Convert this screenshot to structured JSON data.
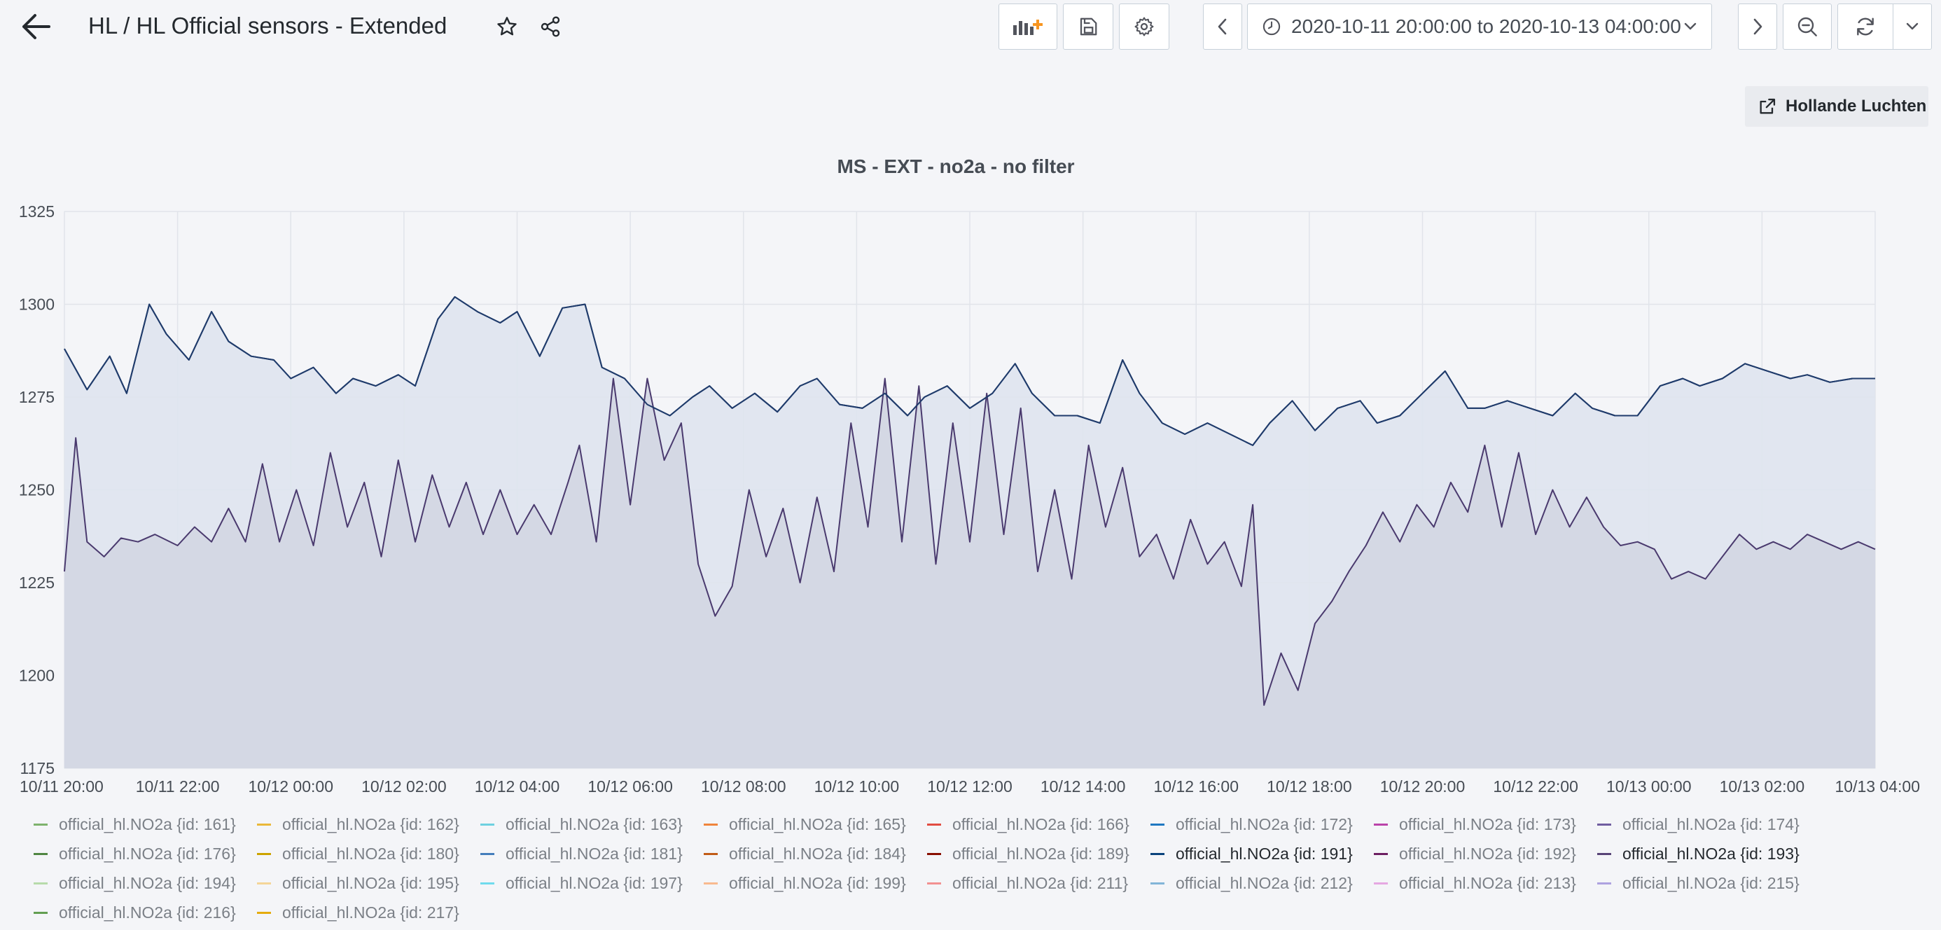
{
  "header": {
    "title": "HL / HL Official sensors - Extended",
    "time_range": "2020-10-11 20:00:00 to 2020-10-13 04:00:00"
  },
  "icons": {
    "back": "arrow-left-icon",
    "star": "star-icon",
    "share": "share-icon",
    "add_panel": "add-panel-icon",
    "save": "save-icon",
    "settings": "gear-icon",
    "prev": "chevron-left-icon",
    "clock": "clock-icon",
    "next": "chevron-right-icon",
    "zoom_out": "zoom-out-icon",
    "refresh": "refresh-icon",
    "external_link": "external-link-icon"
  },
  "links": {
    "external_link_label": "Hollande Luchten"
  },
  "panel": {
    "title": "MS - EXT - no2a - no filter"
  },
  "chart_data": {
    "type": "area",
    "title": "MS - EXT - no2a - no filter",
    "ylim": [
      1175,
      1325
    ],
    "y_ticks": [
      "1325",
      "1300",
      "1275",
      "1250",
      "1225",
      "1200",
      "1175"
    ],
    "x_ticks": [
      "10/11 20:00",
      "10/11 22:00",
      "10/12 00:00",
      "10/12 02:00",
      "10/12 04:00",
      "10/12 06:00",
      "10/12 08:00",
      "10/12 10:00",
      "10/12 12:00",
      "10/12 14:00",
      "10/12 16:00",
      "10/12 18:00",
      "10/12 20:00",
      "10/12 22:00",
      "10/13 00:00",
      "10/13 02:00",
      "10/13 04:00"
    ],
    "x_range_hours": [
      0,
      32
    ],
    "grid": true,
    "legend_position": "bottom",
    "series": [
      {
        "name": "official_hl.NO2a {id: 191}",
        "color": "#1f3b6b",
        "fill": "#dfe4ee",
        "points": [
          [
            0,
            1288
          ],
          [
            0.4,
            1277
          ],
          [
            0.8,
            1286
          ],
          [
            1.1,
            1276
          ],
          [
            1.5,
            1300
          ],
          [
            1.8,
            1292
          ],
          [
            2.2,
            1285
          ],
          [
            2.6,
            1298
          ],
          [
            2.9,
            1290
          ],
          [
            3.3,
            1286
          ],
          [
            3.7,
            1285
          ],
          [
            4.0,
            1280
          ],
          [
            4.4,
            1283
          ],
          [
            4.8,
            1276
          ],
          [
            5.1,
            1280
          ],
          [
            5.5,
            1278
          ],
          [
            5.9,
            1281
          ],
          [
            6.2,
            1278
          ],
          [
            6.6,
            1296
          ],
          [
            6.9,
            1302
          ],
          [
            7.3,
            1298
          ],
          [
            7.7,
            1295
          ],
          [
            8.0,
            1298
          ],
          [
            8.4,
            1286
          ],
          [
            8.8,
            1299
          ],
          [
            9.2,
            1300
          ],
          [
            9.5,
            1283
          ],
          [
            9.9,
            1280
          ],
          [
            10.3,
            1273
          ],
          [
            10.7,
            1270
          ],
          [
            11.1,
            1275
          ],
          [
            11.4,
            1278
          ],
          [
            11.8,
            1272
          ],
          [
            12.2,
            1276
          ],
          [
            12.6,
            1271
          ],
          [
            13.0,
            1278
          ],
          [
            13.3,
            1280
          ],
          [
            13.7,
            1273
          ],
          [
            14.1,
            1272
          ],
          [
            14.5,
            1276
          ],
          [
            14.9,
            1270
          ],
          [
            15.2,
            1275
          ],
          [
            15.6,
            1278
          ],
          [
            16.0,
            1272
          ],
          [
            16.4,
            1276
          ],
          [
            16.8,
            1284
          ],
          [
            17.1,
            1276
          ],
          [
            17.5,
            1270
          ],
          [
            17.9,
            1270
          ],
          [
            18.3,
            1268
          ],
          [
            18.7,
            1285
          ],
          [
            19.0,
            1276
          ],
          [
            19.4,
            1268
          ],
          [
            19.8,
            1265
          ],
          [
            20.2,
            1268
          ],
          [
            20.6,
            1265
          ],
          [
            21.0,
            1262
          ],
          [
            21.3,
            1268
          ],
          [
            21.7,
            1274
          ],
          [
            22.1,
            1266
          ],
          [
            22.5,
            1272
          ],
          [
            22.9,
            1274
          ],
          [
            23.2,
            1268
          ],
          [
            23.6,
            1270
          ],
          [
            24.0,
            1276
          ],
          [
            24.4,
            1282
          ],
          [
            24.8,
            1272
          ],
          [
            25.1,
            1272
          ],
          [
            25.5,
            1274
          ],
          [
            25.9,
            1272
          ],
          [
            26.3,
            1270
          ],
          [
            26.7,
            1276
          ],
          [
            27.0,
            1272
          ],
          [
            27.4,
            1270
          ],
          [
            27.8,
            1270
          ],
          [
            28.2,
            1278
          ],
          [
            28.6,
            1280
          ],
          [
            28.9,
            1278
          ],
          [
            29.3,
            1280
          ],
          [
            29.7,
            1284
          ],
          [
            30.1,
            1282
          ],
          [
            30.5,
            1280
          ],
          [
            30.8,
            1281
          ],
          [
            31.2,
            1279
          ],
          [
            31.6,
            1280
          ],
          [
            32.0,
            1280
          ]
        ]
      },
      {
        "name": "official_hl.NO2a {id: 193}",
        "color": "#4a3a6e",
        "fill": "#d3d6e2",
        "points": [
          [
            0,
            1228
          ],
          [
            0.2,
            1264
          ],
          [
            0.4,
            1236
          ],
          [
            0.7,
            1232
          ],
          [
            1.0,
            1237
          ],
          [
            1.3,
            1236
          ],
          [
            1.6,
            1238
          ],
          [
            2.0,
            1235
          ],
          [
            2.3,
            1240
          ],
          [
            2.6,
            1236
          ],
          [
            2.9,
            1245
          ],
          [
            3.2,
            1236
          ],
          [
            3.5,
            1257
          ],
          [
            3.8,
            1236
          ],
          [
            4.1,
            1250
          ],
          [
            4.4,
            1235
          ],
          [
            4.7,
            1260
          ],
          [
            5.0,
            1240
          ],
          [
            5.3,
            1252
          ],
          [
            5.6,
            1232
          ],
          [
            5.9,
            1258
          ],
          [
            6.2,
            1236
          ],
          [
            6.5,
            1254
          ],
          [
            6.8,
            1240
          ],
          [
            7.1,
            1252
          ],
          [
            7.4,
            1238
          ],
          [
            7.7,
            1250
          ],
          [
            8.0,
            1238
          ],
          [
            8.3,
            1246
          ],
          [
            8.6,
            1238
          ],
          [
            8.9,
            1252
          ],
          [
            9.1,
            1262
          ],
          [
            9.4,
            1236
          ],
          [
            9.7,
            1280
          ],
          [
            10.0,
            1246
          ],
          [
            10.3,
            1280
          ],
          [
            10.6,
            1258
          ],
          [
            10.9,
            1268
          ],
          [
            11.2,
            1230
          ],
          [
            11.5,
            1216
          ],
          [
            11.8,
            1224
          ],
          [
            12.1,
            1250
          ],
          [
            12.4,
            1232
          ],
          [
            12.7,
            1245
          ],
          [
            13.0,
            1225
          ],
          [
            13.3,
            1248
          ],
          [
            13.6,
            1228
          ],
          [
            13.9,
            1268
          ],
          [
            14.2,
            1240
          ],
          [
            14.5,
            1280
          ],
          [
            14.8,
            1236
          ],
          [
            15.1,
            1278
          ],
          [
            15.4,
            1230
          ],
          [
            15.7,
            1268
          ],
          [
            16.0,
            1236
          ],
          [
            16.3,
            1276
          ],
          [
            16.6,
            1238
          ],
          [
            16.9,
            1272
          ],
          [
            17.2,
            1228
          ],
          [
            17.5,
            1250
          ],
          [
            17.8,
            1226
          ],
          [
            18.1,
            1262
          ],
          [
            18.4,
            1240
          ],
          [
            18.7,
            1256
          ],
          [
            19.0,
            1232
          ],
          [
            19.3,
            1238
          ],
          [
            19.6,
            1226
          ],
          [
            19.9,
            1242
          ],
          [
            20.2,
            1230
          ],
          [
            20.5,
            1236
          ],
          [
            20.8,
            1224
          ],
          [
            21.0,
            1246
          ],
          [
            21.2,
            1192
          ],
          [
            21.5,
            1206
          ],
          [
            21.8,
            1196
          ],
          [
            22.1,
            1214
          ],
          [
            22.4,
            1220
          ],
          [
            22.7,
            1228
          ],
          [
            23.0,
            1235
          ],
          [
            23.3,
            1244
          ],
          [
            23.6,
            1236
          ],
          [
            23.9,
            1246
          ],
          [
            24.2,
            1240
          ],
          [
            24.5,
            1252
          ],
          [
            24.8,
            1244
          ],
          [
            25.1,
            1262
          ],
          [
            25.4,
            1240
          ],
          [
            25.7,
            1260
          ],
          [
            26.0,
            1238
          ],
          [
            26.3,
            1250
          ],
          [
            26.6,
            1240
          ],
          [
            26.9,
            1248
          ],
          [
            27.2,
            1240
          ],
          [
            27.5,
            1235
          ],
          [
            27.8,
            1236
          ],
          [
            28.1,
            1234
          ],
          [
            28.4,
            1226
          ],
          [
            28.7,
            1228
          ],
          [
            29.0,
            1226
          ],
          [
            29.3,
            1232
          ],
          [
            29.6,
            1238
          ],
          [
            29.9,
            1234
          ],
          [
            30.2,
            1236
          ],
          [
            30.5,
            1234
          ],
          [
            30.8,
            1238
          ],
          [
            31.1,
            1236
          ],
          [
            31.4,
            1234
          ],
          [
            31.7,
            1236
          ],
          [
            32.0,
            1234
          ]
        ]
      }
    ],
    "legend": [
      [
        {
          "name": "official_hl.NO2a {id: 161}",
          "color": "#7eb26d"
        },
        {
          "name": "official_hl.NO2a {id: 162}",
          "color": "#eab839"
        },
        {
          "name": "official_hl.NO2a {id: 163}",
          "color": "#6ed0e0"
        },
        {
          "name": "official_hl.NO2a {id: 165}",
          "color": "#ef843c"
        },
        {
          "name": "official_hl.NO2a {id: 166}",
          "color": "#e24d42"
        },
        {
          "name": "official_hl.NO2a {id: 172}",
          "color": "#1f78c1"
        },
        {
          "name": "official_hl.NO2a {id: 173}",
          "color": "#ba43a9"
        },
        {
          "name": "official_hl.NO2a {id: 174}",
          "color": "#705da0"
        }
      ],
      [
        {
          "name": "official_hl.NO2a {id: 176}",
          "color": "#508642"
        },
        {
          "name": "official_hl.NO2a {id: 180}",
          "color": "#cca300"
        },
        {
          "name": "official_hl.NO2a {id: 181}",
          "color": "#447ebc"
        },
        {
          "name": "official_hl.NO2a {id: 184}",
          "color": "#c15c17"
        },
        {
          "name": "official_hl.NO2a {id: 189}",
          "color": "#890f02"
        },
        {
          "name": "official_hl.NO2a {id: 191}",
          "color": "#0a437c",
          "active": true
        },
        {
          "name": "official_hl.NO2a {id: 192}",
          "color": "#6d1f62"
        },
        {
          "name": "official_hl.NO2a {id: 193}",
          "color": "#584477",
          "active": true
        }
      ],
      [
        {
          "name": "official_hl.NO2a {id: 194}",
          "color": "#b7dbab"
        },
        {
          "name": "official_hl.NO2a {id: 195}",
          "color": "#f4d598"
        },
        {
          "name": "official_hl.NO2a {id: 197}",
          "color": "#70dbed"
        },
        {
          "name": "official_hl.NO2a {id: 199}",
          "color": "#f9ba8f"
        },
        {
          "name": "official_hl.NO2a {id: 211}",
          "color": "#f29191"
        },
        {
          "name": "official_hl.NO2a {id: 212}",
          "color": "#82b5d8"
        },
        {
          "name": "official_hl.NO2a {id: 213}",
          "color": "#e5a8e2"
        },
        {
          "name": "official_hl.NO2a {id: 215}",
          "color": "#aea2e0"
        }
      ],
      [
        {
          "name": "official_hl.NO2a {id: 216}",
          "color": "#629e51"
        },
        {
          "name": "official_hl.NO2a {id: 217}",
          "color": "#e5ac0e"
        }
      ]
    ]
  }
}
